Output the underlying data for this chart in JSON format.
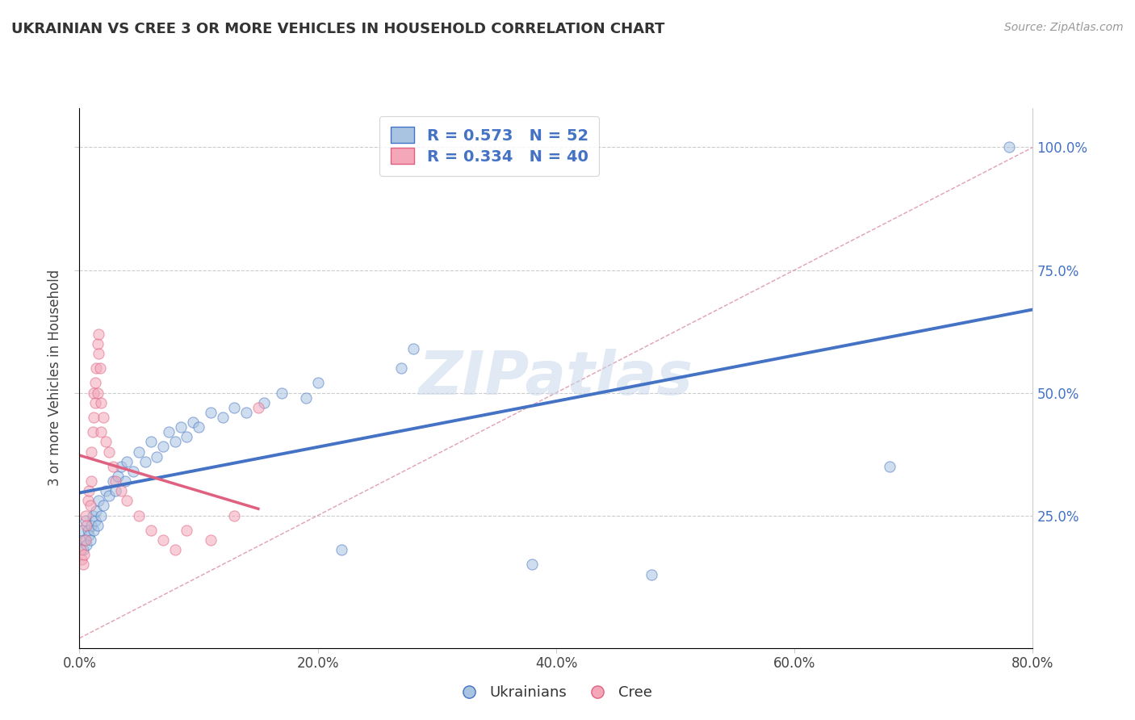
{
  "title": "UKRAINIAN VS CREE 3 OR MORE VEHICLES IN HOUSEHOLD CORRELATION CHART",
  "source_text": "Source: ZipAtlas.com",
  "ylabel": "3 or more Vehicles in Household",
  "xlim": [
    0.0,
    0.8
  ],
  "ylim": [
    -0.02,
    1.08
  ],
  "xtick_labels": [
    "0.0%",
    "20.0%",
    "40.0%",
    "60.0%",
    "80.0%"
  ],
  "xtick_vals": [
    0.0,
    0.2,
    0.4,
    0.6,
    0.8
  ],
  "ytick_labels": [
    "25.0%",
    "50.0%",
    "75.0%",
    "100.0%"
  ],
  "ytick_vals": [
    0.25,
    0.5,
    0.75,
    1.0
  ],
  "watermark": "ZIPatlas",
  "legend_blue_R": "R = 0.573",
  "legend_blue_N": "N = 52",
  "legend_pink_R": "R = 0.334",
  "legend_pink_N": "N = 40",
  "blue_scatter": [
    [
      0.002,
      0.22
    ],
    [
      0.003,
      0.18
    ],
    [
      0.004,
      0.2
    ],
    [
      0.005,
      0.24
    ],
    [
      0.006,
      0.19
    ],
    [
      0.007,
      0.22
    ],
    [
      0.008,
      0.21
    ],
    [
      0.009,
      0.2
    ],
    [
      0.01,
      0.23
    ],
    [
      0.011,
      0.25
    ],
    [
      0.012,
      0.22
    ],
    [
      0.013,
      0.24
    ],
    [
      0.014,
      0.26
    ],
    [
      0.015,
      0.23
    ],
    [
      0.016,
      0.28
    ],
    [
      0.018,
      0.25
    ],
    [
      0.02,
      0.27
    ],
    [
      0.022,
      0.3
    ],
    [
      0.025,
      0.29
    ],
    [
      0.028,
      0.32
    ],
    [
      0.03,
      0.3
    ],
    [
      0.032,
      0.33
    ],
    [
      0.035,
      0.35
    ],
    [
      0.038,
      0.32
    ],
    [
      0.04,
      0.36
    ],
    [
      0.045,
      0.34
    ],
    [
      0.05,
      0.38
    ],
    [
      0.055,
      0.36
    ],
    [
      0.06,
      0.4
    ],
    [
      0.065,
      0.37
    ],
    [
      0.07,
      0.39
    ],
    [
      0.075,
      0.42
    ],
    [
      0.08,
      0.4
    ],
    [
      0.085,
      0.43
    ],
    [
      0.09,
      0.41
    ],
    [
      0.095,
      0.44
    ],
    [
      0.1,
      0.43
    ],
    [
      0.11,
      0.46
    ],
    [
      0.12,
      0.45
    ],
    [
      0.13,
      0.47
    ],
    [
      0.14,
      0.46
    ],
    [
      0.155,
      0.48
    ],
    [
      0.17,
      0.5
    ],
    [
      0.19,
      0.49
    ],
    [
      0.2,
      0.52
    ],
    [
      0.22,
      0.18
    ],
    [
      0.27,
      0.55
    ],
    [
      0.28,
      0.59
    ],
    [
      0.38,
      0.15
    ],
    [
      0.48,
      0.13
    ],
    [
      0.68,
      0.35
    ],
    [
      0.78,
      1.0
    ]
  ],
  "pink_scatter": [
    [
      0.001,
      0.18
    ],
    [
      0.002,
      0.16
    ],
    [
      0.003,
      0.15
    ],
    [
      0.004,
      0.17
    ],
    [
      0.005,
      0.2
    ],
    [
      0.005,
      0.25
    ],
    [
      0.006,
      0.23
    ],
    [
      0.007,
      0.28
    ],
    [
      0.008,
      0.3
    ],
    [
      0.009,
      0.27
    ],
    [
      0.01,
      0.32
    ],
    [
      0.01,
      0.38
    ],
    [
      0.011,
      0.42
    ],
    [
      0.012,
      0.45
    ],
    [
      0.012,
      0.5
    ],
    [
      0.013,
      0.48
    ],
    [
      0.013,
      0.52
    ],
    [
      0.014,
      0.55
    ],
    [
      0.015,
      0.5
    ],
    [
      0.015,
      0.6
    ],
    [
      0.016,
      0.58
    ],
    [
      0.016,
      0.62
    ],
    [
      0.017,
      0.55
    ],
    [
      0.018,
      0.48
    ],
    [
      0.018,
      0.42
    ],
    [
      0.02,
      0.45
    ],
    [
      0.022,
      0.4
    ],
    [
      0.025,
      0.38
    ],
    [
      0.028,
      0.35
    ],
    [
      0.03,
      0.32
    ],
    [
      0.035,
      0.3
    ],
    [
      0.04,
      0.28
    ],
    [
      0.05,
      0.25
    ],
    [
      0.06,
      0.22
    ],
    [
      0.07,
      0.2
    ],
    [
      0.08,
      0.18
    ],
    [
      0.09,
      0.22
    ],
    [
      0.11,
      0.2
    ],
    [
      0.13,
      0.25
    ],
    [
      0.15,
      0.47
    ]
  ],
  "blue_color": "#a8c4e0",
  "blue_line_color": "#4472c4",
  "pink_color": "#f4a7b9",
  "pink_line_color": "#e06080",
  "diag_color": "#c0c0c0",
  "scatter_size": 90,
  "scatter_alpha": 0.55,
  "grid_color": "#cccccc",
  "bg_color": "#ffffff"
}
